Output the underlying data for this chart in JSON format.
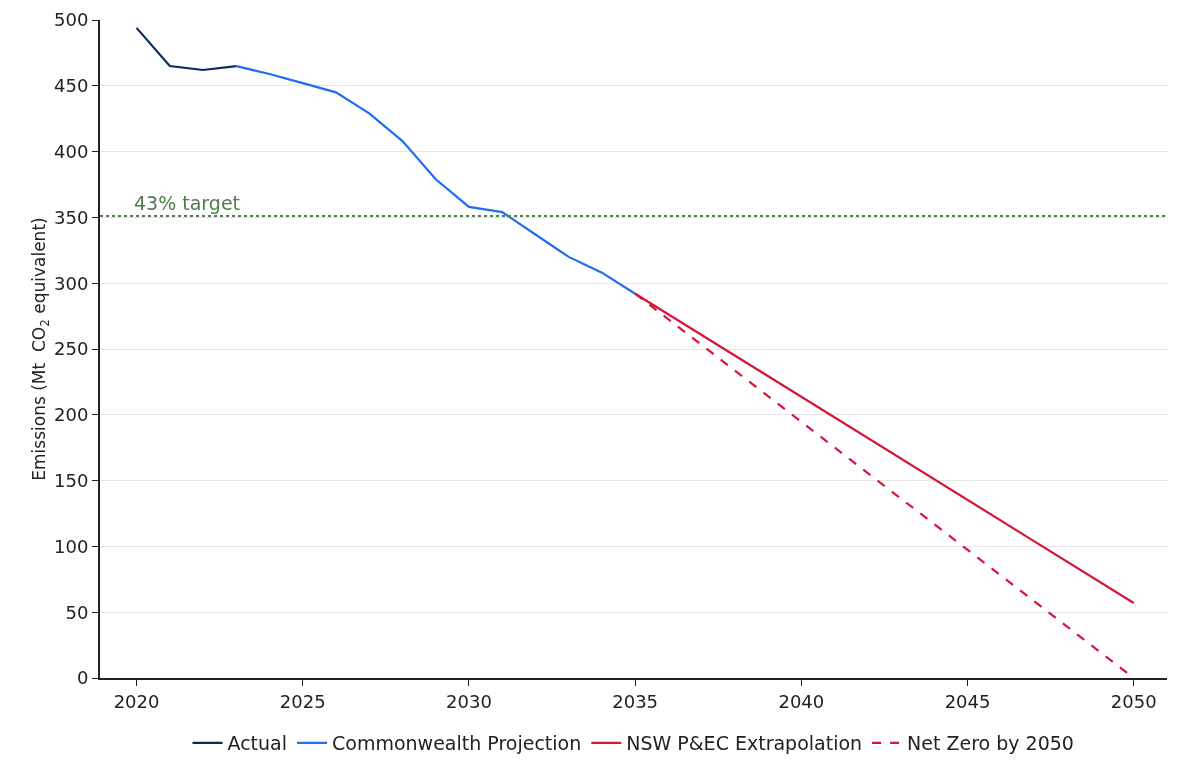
{
  "chart_data": {
    "type": "line",
    "ylabel": "Emissions (Mt  CO$_{2}$ equivalent)",
    "xlim": [
      2018.9,
      2051
    ],
    "xticks": [
      2020,
      2025,
      2030,
      2035,
      2040,
      2045,
      2050
    ],
    "ylim": [
      0,
      500
    ],
    "yticks": [
      0,
      50,
      100,
      150,
      200,
      250,
      300,
      350,
      400,
      450,
      500
    ],
    "grid": "y",
    "legend": "bottom",
    "marker": "none",
    "series": [
      {
        "name": "Actual",
        "color": "#0b2a5e",
        "x": [
          2020,
          2021,
          2022,
          2023
        ],
        "values": [
          494,
          465,
          462,
          465
        ]
      },
      {
        "name": "Commonwealth Projection",
        "color": "#1e6ff0",
        "x": [
          2023,
          2024,
          2025,
          2026,
          2027,
          2028,
          2029,
          2030,
          2031,
          2032,
          2033,
          2034,
          2035
        ],
        "values": [
          465,
          459,
          452,
          445,
          429,
          408,
          379,
          358,
          354,
          337,
          320,
          308,
          292
        ]
      },
      {
        "name": "NSW P&EC Extrapolation",
        "color": "#d7153a",
        "x": [
          2035,
          2050
        ],
        "values": [
          292,
          57
        ]
      },
      {
        "name": "Net Zero by 2050",
        "color": "#d7153a",
        "line_style": "dashed",
        "x": [
          2035,
          2050
        ],
        "values": [
          292,
          0
        ]
      }
    ],
    "ref_lines": [
      {
        "axis": "y",
        "value": 351,
        "label": "43% target",
        "color": "#4f7d4a",
        "line_style": "dotted"
      }
    ]
  }
}
